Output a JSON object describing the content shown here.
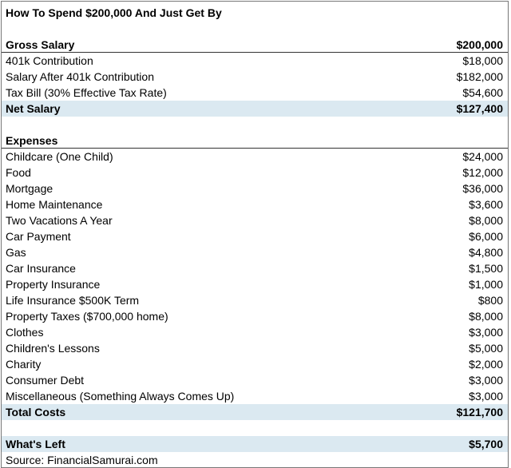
{
  "title": "How To Spend $200,000 And Just Get By",
  "income": {
    "header": [
      "Gross Salary",
      "$200,000"
    ],
    "rows": [
      [
        "401k Contribution",
        "$18,000"
      ],
      [
        "Salary After 401k Contribution",
        "$182,000"
      ],
      [
        "Tax Bill (30% Effective Tax Rate)",
        "$54,600"
      ]
    ],
    "total": [
      "Net Salary",
      "$127,400"
    ]
  },
  "expenses": {
    "header": [
      "Expenses"
    ],
    "rows": [
      [
        "Childcare (One Child)",
        "$24,000"
      ],
      [
        "Food",
        "$12,000"
      ],
      [
        "Mortgage",
        "$36,000"
      ],
      [
        "Home Maintenance",
        "$3,600"
      ],
      [
        "Two Vacations A Year",
        "$8,000"
      ],
      [
        "Car Payment",
        "$6,000"
      ],
      [
        "Gas",
        "$4,800"
      ],
      [
        "Car Insurance",
        "$1,500"
      ],
      [
        "Property Insurance",
        "$1,000"
      ],
      [
        "Life Insurance $500K Term",
        "$800"
      ],
      [
        "Property Taxes ($700,000 home)",
        "$8,000"
      ],
      [
        "Clothes",
        "$3,000"
      ],
      [
        "Children's Lessons",
        "$5,000"
      ],
      [
        "Charity",
        "$2,000"
      ],
      [
        "Consumer Debt",
        "$3,000"
      ],
      [
        "Miscellaneous (Something Always Comes Up)",
        "$3,000"
      ]
    ],
    "total": [
      "Total Costs",
      "$121,700"
    ]
  },
  "left": [
    "What's Left",
    "$5,700"
  ],
  "source": "Source: FinancialSamurai.com"
}
